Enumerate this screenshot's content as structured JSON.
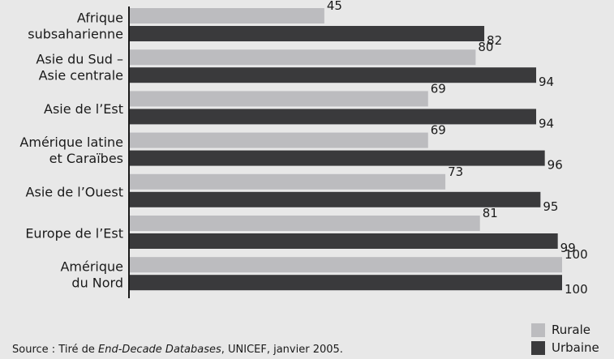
{
  "chart_data": {
    "type": "bar",
    "orientation": "horizontal",
    "categories": [
      [
        "Afrique",
        "subsaharienne"
      ],
      [
        "Asie du Sud –",
        "Asie centrale"
      ],
      [
        "Asie de l’Est"
      ],
      [
        "Amérique latine",
        "et Caraïbes"
      ],
      [
        "Asie de l’Ouest"
      ],
      [
        "Europe de l’Est"
      ],
      [
        "Amérique",
        "du Nord"
      ]
    ],
    "series": [
      {
        "name": "Rurale",
        "color": "#bcbcbf",
        "values": [
          45,
          80,
          69,
          69,
          73,
          81,
          100
        ]
      },
      {
        "name": "Urbaine",
        "color": "#3a3a3c",
        "values": [
          82,
          94,
          94,
          96,
          95,
          99,
          100
        ]
      }
    ],
    "xlim": [
      0,
      100
    ],
    "grid": false,
    "legend_position": "bottom-right"
  },
  "source": {
    "prefix": "Source : Tiré de ",
    "title": "End-Decade Databases",
    "suffix": ", UNICEF, janvier 2005."
  }
}
